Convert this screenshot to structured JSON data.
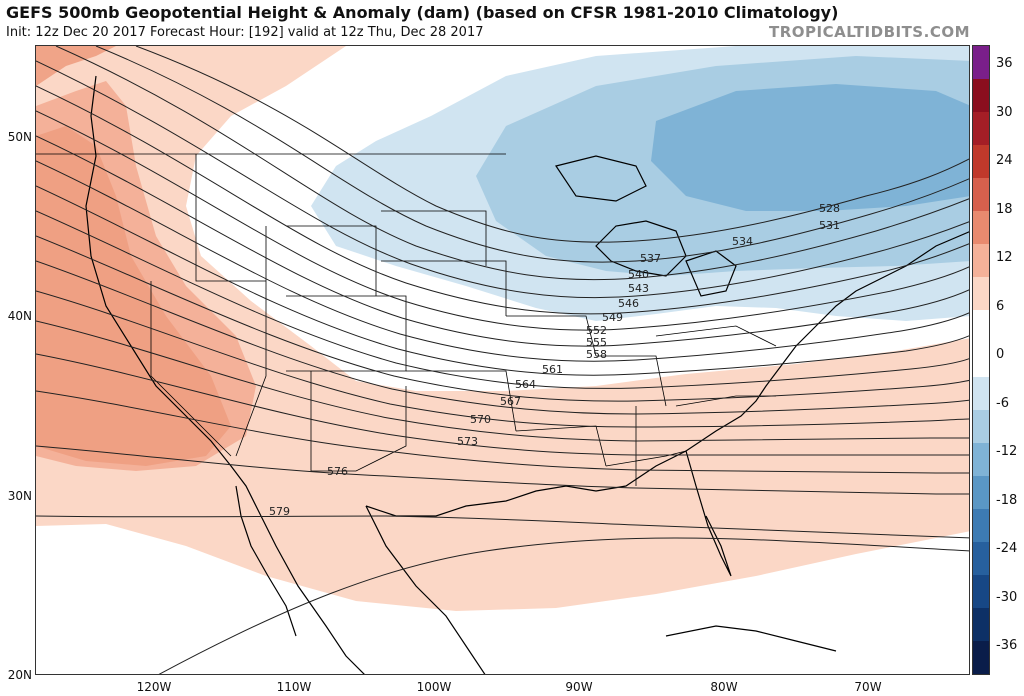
{
  "header": {
    "title": "GEFS 500mb Geopotential Height & Anomaly (dam) (based on CFSR 1981-2010 Climatology)",
    "subtitle": "Init: 12z Dec 20 2017   Forecast Hour: [192]   valid at 12z Thu, Dec 28 2017",
    "brand": "TROPICALTIDBITS.COM"
  },
  "axes": {
    "latitudes": [
      "50N",
      "40N",
      "30N",
      "20N"
    ],
    "longitudes": [
      "120W",
      "110W",
      "100W",
      "90W",
      "80W",
      "70W"
    ]
  },
  "colorbar": {
    "labels": [
      "36",
      "30",
      "24",
      "18",
      "12",
      "6",
      "0",
      "-6",
      "-12",
      "-18",
      "-24",
      "-30",
      "-36"
    ],
    "colors": [
      "#7a1f8a",
      "#8b0e1e",
      "#a41e26",
      "#c0392b",
      "#d6604d",
      "#e88a6f",
      "#f4b199",
      "#fbd7c6",
      "#ffffff",
      "#ffffff",
      "#d0e4f1",
      "#a9cde3",
      "#7fb3d6",
      "#5a97c5",
      "#3d7bb3",
      "#27609e",
      "#174785",
      "#0d3066",
      "#0a1d4a"
    ]
  },
  "contours": [
    "528",
    "531",
    "534",
    "537",
    "540",
    "543",
    "546",
    "549",
    "552",
    "555",
    "558",
    "561",
    "564",
    "567",
    "570",
    "573",
    "576",
    "579"
  ]
}
